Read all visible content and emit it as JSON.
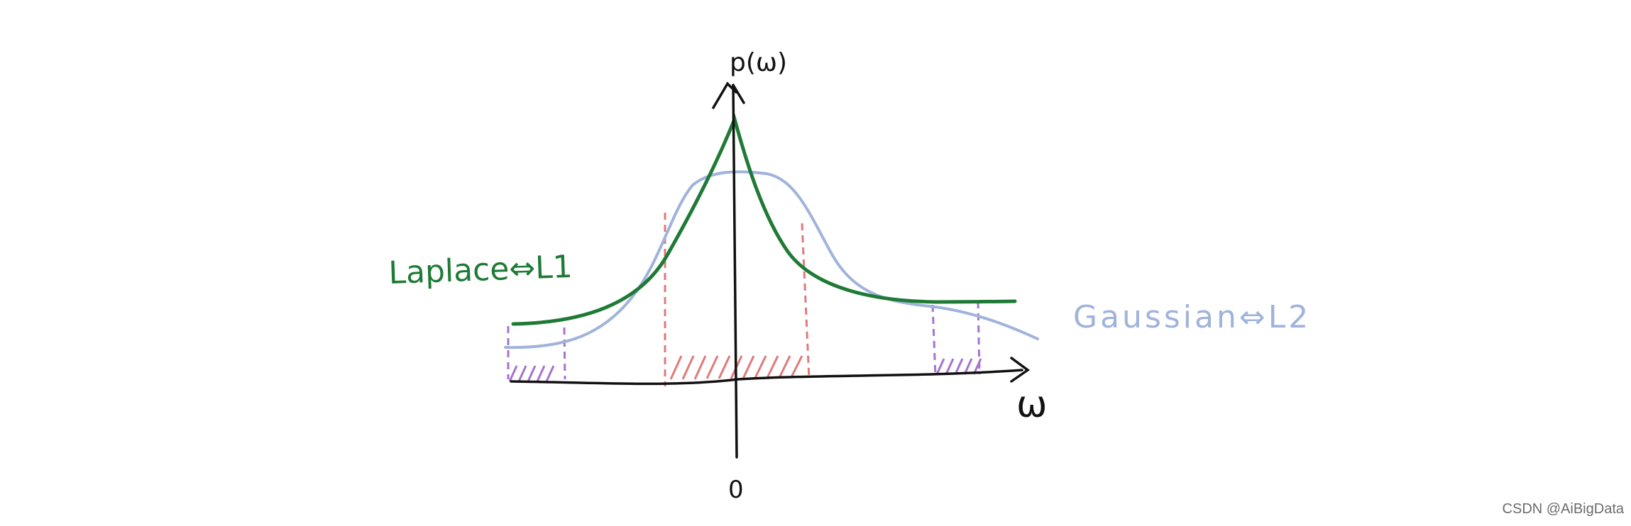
{
  "labels": {
    "y_axis": "p(ω)",
    "x_axis": "ω",
    "origin": "0",
    "laplace": "Laplace⇔L1",
    "gaussian": "Gaussian⇔L2"
  },
  "colors": {
    "axis": "#111111",
    "laplace_curve": "#1f7a35",
    "gaussian_curve": "#9fb3dc",
    "central_region": "#e07a7a",
    "tail_region": "#a673cf"
  },
  "watermark": "CSDN @AiBigData"
}
